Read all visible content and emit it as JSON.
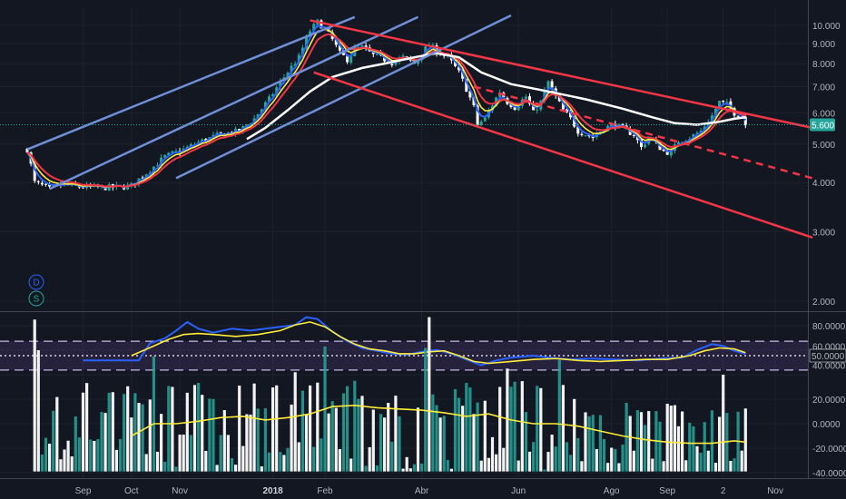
{
  "chart_data": [
    {
      "type": "candlestick",
      "title": "",
      "ylim": [
        1.7,
        10.5
      ],
      "scale": "log",
      "price_ticks": [
        "10.000",
        "9.000",
        "8.000",
        "7.000",
        "6.000",
        "5.000",
        "4.000",
        "3.000",
        "2.000"
      ],
      "last_price": "5.600",
      "last_price_value": 5.6,
      "x_labels": [
        "Sep",
        "Oct",
        "Nov",
        "2018",
        "Feb",
        "Abr",
        "Jun",
        "Ago",
        "Sep",
        "2",
        "Nov"
      ],
      "buttons": [
        "D",
        "S"
      ],
      "colors": {
        "up": "#26a69a",
        "down": "#ffffff",
        "ema_fast": "#ffeb3b",
        "ema_slow": "#f23645",
        "ma_blue": "#2962ff",
        "ma_white": "#ffffff",
        "channel_red": "#f23645",
        "channel_blue": "#6f8fd6"
      },
      "trend_lines": [
        {
          "name": "blue-channel-upper",
          "color": "#6f8fd6",
          "points": [
            [
              0,
              4.85
            ],
            [
              88,
              10.5
            ]
          ]
        },
        {
          "name": "blue-channel-middle",
          "color": "#6f8fd6",
          "points": [
            [
              6,
              3.85
            ],
            [
              105,
              10.5
            ]
          ]
        },
        {
          "name": "blue-channel-lower",
          "color": "#6f8fd6",
          "points": [
            [
              40,
              4.1
            ],
            [
              130,
              10.6
            ]
          ]
        },
        {
          "name": "red-channel-upper",
          "color": "#f23645",
          "points": [
            [
              76,
              10.3
            ],
            [
              211,
              5.5
            ]
          ]
        },
        {
          "name": "red-channel-lower",
          "color": "#f23645",
          "points": [
            [
              77,
              7.6
            ],
            [
              211,
              2.9
            ]
          ]
        },
        {
          "name": "red-channel-middle-dashed",
          "color": "#f23645",
          "dashed": true,
          "points": [
            [
              120,
              7.0
            ],
            [
              211,
              4.1
            ]
          ]
        }
      ],
      "price_path": [
        [
          0,
          4.85
        ],
        [
          2,
          4.0
        ],
        [
          6,
          3.85
        ],
        [
          10,
          3.95
        ],
        [
          14,
          3.9
        ],
        [
          20,
          3.88
        ],
        [
          26,
          3.9
        ],
        [
          28,
          3.93
        ],
        [
          33,
          4.3
        ],
        [
          37,
          4.65
        ],
        [
          42,
          4.85
        ],
        [
          47,
          5.1
        ],
        [
          52,
          5.3
        ],
        [
          57,
          5.4
        ],
        [
          61,
          5.8
        ],
        [
          65,
          6.5
        ],
        [
          69,
          7.4
        ],
        [
          73,
          8.3
        ],
        [
          76,
          9.7
        ],
        [
          78,
          10.2
        ],
        [
          80,
          9.8
        ],
        [
          82,
          9.2
        ],
        [
          84,
          8.5
        ],
        [
          86,
          8.2
        ],
        [
          88,
          8.7
        ],
        [
          90,
          8.8
        ],
        [
          93,
          8.4
        ],
        [
          96,
          8.2
        ],
        [
          98,
          8.05
        ],
        [
          101,
          8.3
        ],
        [
          104,
          8.0
        ],
        [
          106,
          8.5
        ],
        [
          108,
          8.95
        ],
        [
          110,
          8.6
        ],
        [
          113,
          8.3
        ],
        [
          116,
          7.6
        ],
        [
          118,
          6.9
        ],
        [
          120,
          6.2
        ],
        [
          121,
          5.6
        ],
        [
          123,
          5.8
        ],
        [
          125,
          6.3
        ],
        [
          127,
          6.8
        ],
        [
          129,
          6.4
        ],
        [
          131,
          6.2
        ],
        [
          134,
          6.6
        ],
        [
          136,
          6.0
        ],
        [
          138,
          6.4
        ],
        [
          140,
          7.2
        ],
        [
          142,
          6.6
        ],
        [
          144,
          6.1
        ],
        [
          146,
          5.8
        ],
        [
          148,
          5.4
        ],
        [
          150,
          5.3
        ],
        [
          152,
          5.2
        ],
        [
          155,
          5.5
        ],
        [
          158,
          5.6
        ],
        [
          161,
          5.4
        ],
        [
          163,
          5.3
        ],
        [
          165,
          4.9
        ],
        [
          167,
          5.2
        ],
        [
          169,
          5.0
        ],
        [
          171,
          4.8
        ],
        [
          173,
          4.75
        ],
        [
          175,
          5.1
        ],
        [
          178,
          5.2
        ],
        [
          181,
          5.4
        ],
        [
          184,
          5.9
        ],
        [
          186,
          6.4
        ],
        [
          188,
          6.3
        ],
        [
          190,
          6.0
        ],
        [
          192,
          5.9
        ],
        [
          193,
          5.6
        ]
      ],
      "sma_white": [
        [
          59,
          5.15
        ],
        [
          64,
          5.5
        ],
        [
          70,
          6.1
        ],
        [
          76,
          6.8
        ],
        [
          82,
          7.4
        ],
        [
          90,
          7.8
        ],
        [
          96,
          8.0
        ],
        [
          104,
          8.3
        ],
        [
          110,
          8.5
        ],
        [
          116,
          8.3
        ],
        [
          122,
          7.6
        ],
        [
          130,
          7.1
        ],
        [
          140,
          6.8
        ],
        [
          150,
          6.5
        ],
        [
          160,
          6.15
        ],
        [
          168,
          5.85
        ],
        [
          174,
          5.65
        ],
        [
          180,
          5.6
        ],
        [
          186,
          5.7
        ],
        [
          190,
          5.8
        ],
        [
          193,
          5.85
        ]
      ]
    },
    {
      "type": "line",
      "name": "oscillator",
      "ylim": [
        0,
        100
      ],
      "ticks": [
        "80.0000",
        "60.0000",
        "40.0000"
      ],
      "current_value": "50.0000",
      "current_value_num": 50,
      "bands": {
        "upper": 65,
        "middle": 50,
        "lower": 35
      },
      "blue_line": [
        [
          15,
          45
        ],
        [
          22,
          45
        ],
        [
          30,
          45
        ],
        [
          33,
          63
        ],
        [
          37,
          68
        ],
        [
          40,
          76
        ],
        [
          43,
          85
        ],
        [
          46,
          78
        ],
        [
          50,
          74
        ],
        [
          55,
          78
        ],
        [
          60,
          76
        ],
        [
          64,
          78
        ],
        [
          68,
          80
        ],
        [
          72,
          82
        ],
        [
          75,
          90
        ],
        [
          78,
          88
        ],
        [
          82,
          75
        ],
        [
          86,
          65
        ],
        [
          90,
          58
        ],
        [
          94,
          55
        ],
        [
          98,
          52
        ],
        [
          102,
          51
        ],
        [
          106,
          54
        ],
        [
          110,
          56
        ],
        [
          114,
          52
        ],
        [
          118,
          46
        ],
        [
          122,
          40
        ],
        [
          126,
          45
        ],
        [
          130,
          48
        ],
        [
          136,
          50
        ],
        [
          140,
          48
        ],
        [
          146,
          46
        ],
        [
          152,
          47
        ],
        [
          158,
          46
        ],
        [
          164,
          45
        ],
        [
          170,
          47
        ],
        [
          176,
          48
        ],
        [
          180,
          56
        ],
        [
          184,
          62
        ],
        [
          187,
          60
        ],
        [
          190,
          55
        ],
        [
          193,
          52
        ]
      ],
      "yellow_line": [
        [
          28,
          50
        ],
        [
          34,
          60
        ],
        [
          38,
          67
        ],
        [
          42,
          72
        ],
        [
          46,
          73
        ],
        [
          50,
          72
        ],
        [
          56,
          70
        ],
        [
          62,
          72
        ],
        [
          68,
          76
        ],
        [
          72,
          82
        ],
        [
          76,
          85
        ],
        [
          80,
          80
        ],
        [
          84,
          70
        ],
        [
          88,
          62
        ],
        [
          92,
          57
        ],
        [
          96,
          55
        ],
        [
          100,
          52
        ],
        [
          104,
          52
        ],
        [
          108,
          54
        ],
        [
          112,
          55
        ],
        [
          116,
          50
        ],
        [
          120,
          44
        ],
        [
          124,
          42
        ],
        [
          130,
          44
        ],
        [
          136,
          46
        ],
        [
          142,
          47
        ],
        [
          148,
          45
        ],
        [
          154,
          44
        ],
        [
          160,
          45
        ],
        [
          166,
          46
        ],
        [
          172,
          46
        ],
        [
          178,
          50
        ],
        [
          182,
          55
        ],
        [
          186,
          58
        ],
        [
          190,
          57
        ],
        [
          193,
          53
        ]
      ]
    },
    {
      "type": "bar",
      "name": "histogram",
      "ylim": [
        -42,
        90
      ],
      "ticks": [
        "80.0000",
        "60.0000",
        "40.0000",
        "20.0000",
        "0.0000",
        "-20.0000",
        "-40.0000"
      ],
      "colors": {
        "up": "#26a69a",
        "down": "#ffffff",
        "signal": "#ffeb3b"
      },
      "spikes": [
        [
          2,
          85
        ],
        [
          3,
          60
        ],
        [
          34,
          55
        ],
        [
          72,
          42
        ],
        [
          80,
          63
        ],
        [
          88,
          35
        ],
        [
          107,
          62
        ],
        [
          108,
          87
        ],
        [
          129,
          45
        ],
        [
          143,
          52
        ],
        [
          187,
          40
        ]
      ],
      "signal_line": [
        [
          28,
          -10
        ],
        [
          34,
          0
        ],
        [
          40,
          0
        ],
        [
          46,
          2
        ],
        [
          52,
          5
        ],
        [
          58,
          6
        ],
        [
          64,
          3
        ],
        [
          70,
          5
        ],
        [
          76,
          8
        ],
        [
          82,
          14
        ],
        [
          88,
          15
        ],
        [
          94,
          13
        ],
        [
          100,
          12
        ],
        [
          106,
          11
        ],
        [
          112,
          9
        ],
        [
          118,
          6
        ],
        [
          124,
          8
        ],
        [
          130,
          3
        ],
        [
          136,
          0
        ],
        [
          142,
          0
        ],
        [
          148,
          -2
        ],
        [
          154,
          -6
        ],
        [
          160,
          -10
        ],
        [
          166,
          -13
        ],
        [
          172,
          -15
        ],
        [
          178,
          -16
        ],
        [
          184,
          -16
        ],
        [
          190,
          -14
        ],
        [
          193,
          -15
        ]
      ]
    }
  ]
}
